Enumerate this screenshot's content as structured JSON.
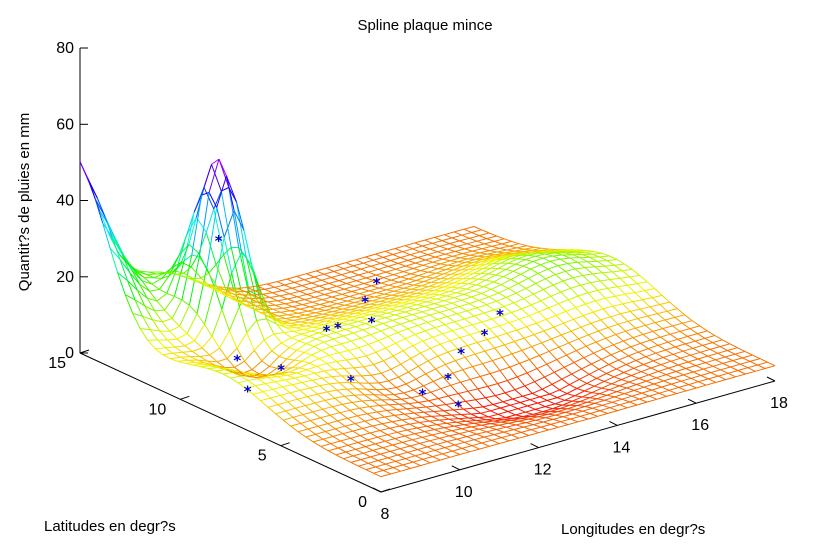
{
  "chart_data": {
    "type": "surface",
    "title": "Spline plaque mince",
    "xlabel": "Longitudes en degr?s",
    "ylabel": "Latitudes en degr?s",
    "zlabel": "Quantit?s de pluies en mm",
    "xlim": [
      8,
      18
    ],
    "ylim": [
      0,
      15
    ],
    "zlim": [
      0,
      80
    ],
    "x_ticks": [
      "8",
      "10",
      "12",
      "14",
      "16",
      "18"
    ],
    "y_ticks": [
      "0",
      "5",
      "10",
      "15"
    ],
    "z_ticks": [
      "0",
      "20",
      "40",
      "60",
      "80"
    ],
    "grid": false,
    "colormap": "hsv",
    "surface_peaks": [
      {
        "x": 8.0,
        "y": 15.0,
        "z": 54
      },
      {
        "x": 10.0,
        "y": 12.0,
        "z": 45
      }
    ],
    "observations": [
      {
        "x": 10.5,
        "y": 13.0,
        "z": 27
      },
      {
        "x": 9.7,
        "y": 10.5,
        "z": 4
      },
      {
        "x": 10.2,
        "y": 9.3,
        "z": 3
      },
      {
        "x": 9.2,
        "y": 9.0,
        "z": 1
      },
      {
        "x": 10.8,
        "y": 7.0,
        "z": 4
      },
      {
        "x": 11.2,
        "y": 9.0,
        "z": 11
      },
      {
        "x": 12.0,
        "y": 10.0,
        "z": 7
      },
      {
        "x": 12.6,
        "y": 9.5,
        "z": 8
      },
      {
        "x": 13.2,
        "y": 11.0,
        "z": 8
      },
      {
        "x": 14.0,
        "y": 12.0,
        "z": 8
      },
      {
        "x": 11.6,
        "y": 5.0,
        "z": 3
      },
      {
        "x": 12.4,
        "y": 5.3,
        "z": 4
      },
      {
        "x": 13.6,
        "y": 7.0,
        "z": 3
      },
      {
        "x": 14.6,
        "y": 7.8,
        "z": 3
      },
      {
        "x": 15.4,
        "y": 8.6,
        "z": 4
      },
      {
        "x": 12.0,
        "y": 4.0,
        "z": 1
      }
    ]
  }
}
